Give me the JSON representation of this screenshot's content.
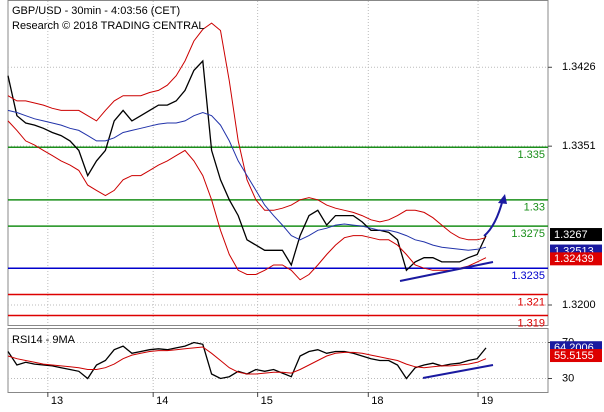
{
  "chart_data": [
    {
      "type": "line",
      "title": "GBP/USD - 30min - 4:03:56 (CET)",
      "subtitle": "Research © 2018 TRADING CENTRAL",
      "xlim": [
        0,
        61
      ],
      "xticks": [
        {
          "value": 4.5,
          "label": "13"
        },
        {
          "value": 16.4,
          "label": "14"
        },
        {
          "value": 28.2,
          "label": "15"
        },
        {
          "value": 40.7,
          "label": "18"
        },
        {
          "value": 53.1,
          "label": "19"
        }
      ],
      "ylim": [
        1.3181,
        1.3489
      ],
      "yticks": [
        1.3426,
        1.3351,
        {
          "value": 1.32,
          "label": "1.3200"
        }
      ],
      "grid": true,
      "series": [
        {
          "color": "#000000",
          "values": [
            1.3418,
            1.338,
            1.3373,
            1.3371,
            1.3368,
            1.3364,
            1.3361,
            1.3356,
            1.3347,
            1.3323,
            1.3337,
            1.3347,
            1.3375,
            1.3385,
            1.3375,
            1.338,
            1.3385,
            1.339,
            1.339,
            1.3394,
            1.3404,
            1.3423,
            1.3432,
            1.3347,
            1.3319,
            1.33,
            1.3285,
            1.3262,
            1.3257,
            1.3252,
            1.3252,
            1.3252,
            1.3238,
            1.3266,
            1.3285,
            1.329,
            1.3276,
            1.3285,
            1.3285,
            1.3285,
            1.3279,
            1.3271,
            1.3271,
            1.3269,
            1.3262,
            1.3233,
            1.3241,
            1.3245,
            1.3245,
            1.3241,
            1.3241,
            1.3241,
            1.3245,
            1.3248,
            1.3266
          ]
        },
        {
          "color": "#cc0000",
          "values": [
            1.3399,
            1.3394,
            1.3394,
            1.3392,
            1.339,
            1.3387,
            1.3385,
            1.3385,
            1.3385,
            1.338,
            1.3375,
            1.3385,
            1.3394,
            1.3399,
            1.3399,
            1.3399,
            1.3402,
            1.3404,
            1.3409,
            1.3418,
            1.3432,
            1.3451,
            1.3462,
            1.3468,
            1.3461,
            1.3413,
            1.3356,
            1.3319,
            1.33,
            1.329,
            1.329,
            1.3292,
            1.3295,
            1.33,
            1.3302,
            1.33,
            1.3295,
            1.3292,
            1.329,
            1.3288,
            1.3285,
            1.3281,
            1.3279,
            1.3281,
            1.3285,
            1.329,
            1.329,
            1.3288,
            1.3283,
            1.3276,
            1.3269,
            1.3264,
            1.3262,
            1.3262,
            1.3264
          ]
        },
        {
          "color": "#cc0000",
          "values": [
            1.3375,
            1.3366,
            1.3356,
            1.3352,
            1.3347,
            1.3342,
            1.3337,
            1.3333,
            1.3328,
            1.3314,
            1.3309,
            1.3304,
            1.3309,
            1.3319,
            1.3323,
            1.3323,
            1.3328,
            1.3333,
            1.3337,
            1.3342,
            1.3347,
            1.3337,
            1.3323,
            1.33,
            1.3271,
            1.3248,
            1.3233,
            1.3229,
            1.3229,
            1.3233,
            1.3238,
            1.3238,
            1.3233,
            1.3224,
            1.3229,
            1.3238,
            1.3248,
            1.3257,
            1.3264,
            1.3266,
            1.3266,
            1.3264,
            1.3262,
            1.3262,
            1.3257,
            1.3248,
            1.3238,
            1.3235,
            1.3233,
            1.3233,
            1.3233,
            1.3235,
            1.3237,
            1.3241,
            1.3245
          ]
        },
        {
          "color": "#2233aa",
          "values": [
            1.3385,
            1.3383,
            1.338,
            1.3377,
            1.3375,
            1.3373,
            1.3371,
            1.3368,
            1.3366,
            1.3361,
            1.3356,
            1.3356,
            1.3359,
            1.3364,
            1.3366,
            1.3368,
            1.337,
            1.3372,
            1.3373,
            1.3373,
            1.3375,
            1.338,
            1.3383,
            1.338,
            1.3371,
            1.3356,
            1.3337,
            1.3323,
            1.3309,
            1.3295,
            1.3285,
            1.3276,
            1.3266,
            1.3262,
            1.3266,
            1.3271,
            1.3273,
            1.3276,
            1.3277,
            1.3276,
            1.3275,
            1.3273,
            1.3271,
            1.3271,
            1.3269,
            1.3266,
            1.3262,
            1.326,
            1.3257,
            1.3255,
            1.3254,
            1.3253,
            1.3252,
            1.3253,
            1.3255
          ]
        }
      ],
      "levels": [
        {
          "value": 1.335,
          "color": "#1a8f1a"
        },
        {
          "value": 1.33,
          "color": "#1a8f1a"
        },
        {
          "value": 1.3275,
          "color": "#1a8f1a"
        },
        {
          "value": 1.3235,
          "color": "#0000cc"
        },
        {
          "value": 1.321,
          "color": "#dd0000"
        },
        {
          "value": 1.319,
          "color": "#dd0000"
        }
      ],
      "markers": [
        {
          "value": 1.3267,
          "color": "#000000"
        },
        {
          "value": 1.32513,
          "color": "#1a1aa0"
        },
        {
          "value": 1.32439,
          "color": "#dd0000"
        }
      ]
    },
    {
      "type": "line",
      "title": "RSI14 - 9MA",
      "xlim": [
        0,
        61
      ],
      "xticks": [
        {
          "value": 4.5,
          "label": "13"
        },
        {
          "value": 16.4,
          "label": "14"
        },
        {
          "value": 28.2,
          "label": "15"
        },
        {
          "value": 40.7,
          "label": "18"
        },
        {
          "value": 53.1,
          "label": "19"
        }
      ],
      "ylim": [
        15,
        85
      ],
      "yticks": [
        30,
        70
      ],
      "grid": true,
      "series": [
        {
          "color": "#000000",
          "values": [
            60,
            45,
            48,
            46,
            45,
            44,
            42,
            40,
            38,
            30,
            45,
            50,
            62,
            66,
            58,
            60,
            62,
            63,
            62,
            64,
            66,
            70,
            68,
            35,
            30,
            32,
            38,
            35,
            40,
            38,
            40,
            36,
            32,
            55,
            60,
            62,
            58,
            60,
            60,
            58,
            55,
            52,
            50,
            50,
            45,
            30,
            42,
            45,
            47,
            44,
            46,
            47,
            50,
            52,
            64
          ]
        },
        {
          "color": "#cc0000",
          "values": [
            55,
            52,
            50,
            48,
            46,
            45,
            44,
            43,
            42,
            40,
            40,
            42,
            46,
            52,
            56,
            58,
            60,
            61,
            61,
            62,
            63,
            64,
            65,
            58,
            50,
            42,
            37,
            35,
            35,
            36,
            37,
            37,
            36,
            40,
            45,
            50,
            55,
            58,
            59,
            59,
            58,
            56,
            54,
            52,
            50,
            46,
            43,
            42,
            43,
            44,
            44,
            45,
            46,
            48,
            52
          ]
        }
      ],
      "markers": [
        {
          "value": 64.2006,
          "color": "#1a1aa0"
        },
        {
          "value": 55.5155,
          "color": "#dd0000"
        }
      ]
    }
  ]
}
